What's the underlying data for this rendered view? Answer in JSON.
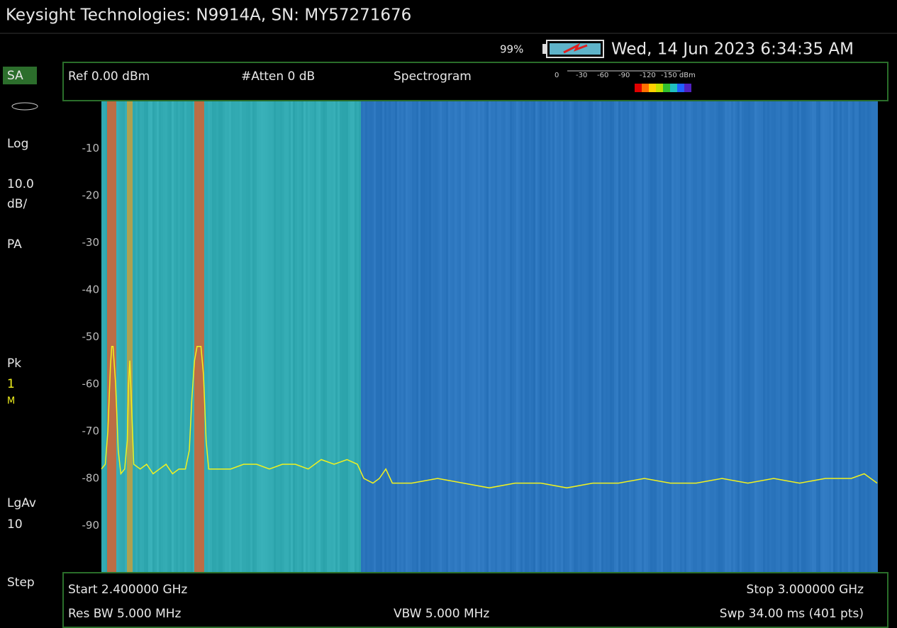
{
  "header": {
    "title": "Keysight Technologies: N9914A, SN: MY57271676",
    "battery": "99%",
    "datetime": "Wed, 14 Jun 2023 6:34:35 AM"
  },
  "sidebar": {
    "mode": "SA",
    "scale_type": "Log",
    "scale_value": "10.0",
    "scale_unit": "dB/",
    "preamp": "PA",
    "detector": "Pk",
    "trace": "1",
    "trace_state": "M",
    "average": "LgAv",
    "average_count": "10",
    "step": "Step"
  },
  "infobar": {
    "ref": "Ref 0.00 dBm",
    "atten": "#Atten 0 dB",
    "view": "Spectrogram",
    "color_scale": [
      "0",
      "-30",
      "-60",
      "-90",
      "-120",
      "-150 dBm"
    ]
  },
  "chart_data": {
    "type": "line",
    "color": "#f2f21e",
    "xlim": [
      2.4,
      3.0
    ],
    "ylim": [
      -100,
      0
    ],
    "yticks": [
      -10,
      -20,
      -30,
      -40,
      -50,
      -60,
      -70,
      -80,
      -90
    ],
    "x": [
      2.4,
      2.403,
      2.405,
      2.407,
      2.408,
      2.409,
      2.411,
      2.413,
      2.415,
      2.418,
      2.42,
      2.421,
      2.422,
      2.423,
      2.425,
      2.43,
      2.435,
      2.44,
      2.445,
      2.45,
      2.455,
      2.46,
      2.465,
      2.468,
      2.47,
      2.472,
      2.474,
      2.477,
      2.479,
      2.481,
      2.483,
      2.49,
      2.5,
      2.51,
      2.52,
      2.53,
      2.54,
      2.55,
      2.56,
      2.57,
      2.58,
      2.59,
      2.598,
      2.603,
      2.61,
      2.615,
      2.62,
      2.625,
      2.64,
      2.66,
      2.68,
      2.7,
      2.72,
      2.74,
      2.76,
      2.78,
      2.8,
      2.82,
      2.84,
      2.86,
      2.88,
      2.9,
      2.92,
      2.94,
      2.96,
      2.98,
      2.99,
      3.0
    ],
    "values": [
      -78,
      -77,
      -70,
      -56,
      -52,
      -52,
      -60,
      -74,
      -79,
      -78,
      -72,
      -60,
      -55,
      -62,
      -77,
      -78,
      -77,
      -79,
      -78,
      -77,
      -79,
      -78,
      -78,
      -74,
      -63,
      -55,
      -52,
      -52,
      -58,
      -72,
      -78,
      -78,
      -78,
      -77,
      -77,
      -78,
      -77,
      -77,
      -78,
      -76,
      -77,
      -76,
      -77,
      -80,
      -81,
      -80,
      -78,
      -81,
      -81,
      -80,
      -81,
      -82,
      -81,
      -81,
      -82,
      -81,
      -81,
      -80,
      -81,
      -81,
      -80,
      -81,
      -80,
      -81,
      -80,
      -80,
      -79,
      -81
    ]
  },
  "footer": {
    "start": "Start 2.400000 GHz",
    "stop": "Stop 3.000000 GHz",
    "rbw": "Res BW 5.000 MHz",
    "vbw": "VBW 5.000 MHz",
    "sweep": "Swp 34.00 ms (401 pts)"
  }
}
